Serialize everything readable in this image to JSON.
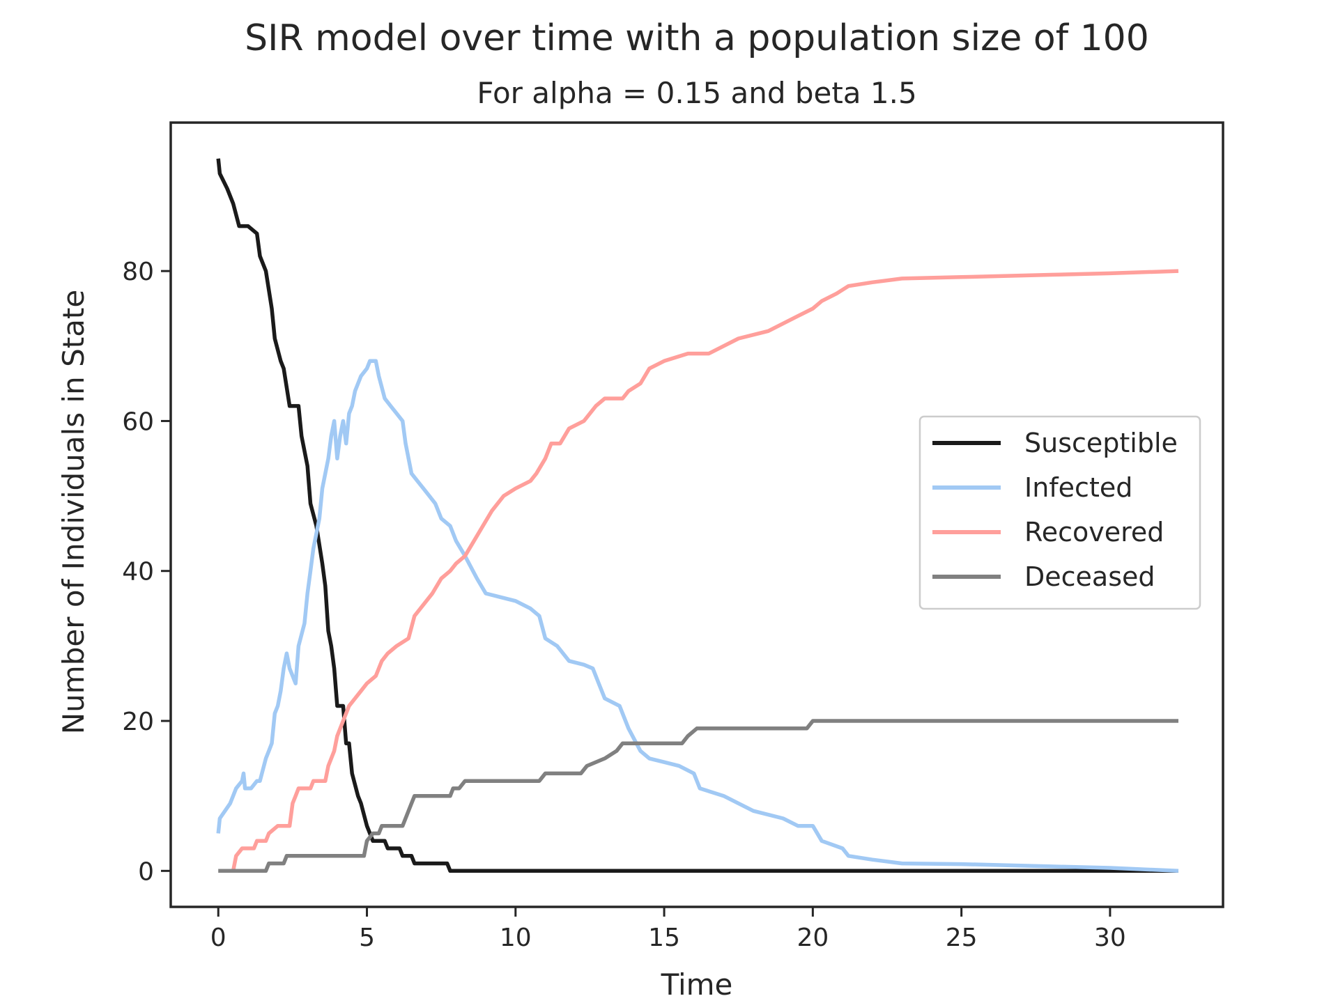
{
  "chart_data": {
    "type": "line",
    "title": "SIR model over time with a population size of 100",
    "subtitle": "For alpha = 0.15 and beta 1.5",
    "xlabel": "Time",
    "ylabel": "Number of Individuals in State",
    "xlim": [
      -1.6,
      33.8
    ],
    "ylim": [
      -4.8,
      99.8
    ],
    "xticks": [
      0,
      5,
      10,
      15,
      20,
      25,
      30
    ],
    "yticks": [
      0,
      20,
      40,
      60,
      80
    ],
    "grid": false,
    "legend_position": "center-right",
    "series": [
      {
        "name": "Susceptible",
        "color": "#1a1a1a",
        "points": [
          [
            0,
            95
          ],
          [
            0.05,
            93
          ],
          [
            0.3,
            91
          ],
          [
            0.5,
            89
          ],
          [
            0.7,
            86
          ],
          [
            1.0,
            86
          ],
          [
            1.3,
            85
          ],
          [
            1.4,
            82
          ],
          [
            1.6,
            80
          ],
          [
            1.8,
            75
          ],
          [
            1.9,
            71
          ],
          [
            2.1,
            68
          ],
          [
            2.2,
            67
          ],
          [
            2.4,
            62
          ],
          [
            2.7,
            62
          ],
          [
            2.8,
            58
          ],
          [
            3.0,
            54
          ],
          [
            3.1,
            49
          ],
          [
            3.3,
            46
          ],
          [
            3.5,
            41
          ],
          [
            3.6,
            38
          ],
          [
            3.7,
            32
          ],
          [
            3.8,
            30
          ],
          [
            3.9,
            27
          ],
          [
            4.0,
            22
          ],
          [
            4.2,
            22
          ],
          [
            4.3,
            17
          ],
          [
            4.4,
            17
          ],
          [
            4.5,
            13
          ],
          [
            4.7,
            10
          ],
          [
            4.8,
            9
          ],
          [
            5.0,
            6
          ],
          [
            5.2,
            4
          ],
          [
            5.6,
            4
          ],
          [
            5.7,
            3
          ],
          [
            6.1,
            3
          ],
          [
            6.2,
            2
          ],
          [
            6.5,
            2
          ],
          [
            6.6,
            1
          ],
          [
            7.7,
            1
          ],
          [
            7.8,
            0
          ],
          [
            32.3,
            0
          ]
        ]
      },
      {
        "name": "Infected",
        "color": "#a1c9f4",
        "points": [
          [
            0,
            5
          ],
          [
            0.05,
            7
          ],
          [
            0.4,
            9
          ],
          [
            0.6,
            11
          ],
          [
            0.8,
            12
          ],
          [
            0.85,
            13
          ],
          [
            0.9,
            11
          ],
          [
            1.1,
            11
          ],
          [
            1.3,
            12
          ],
          [
            1.4,
            12
          ],
          [
            1.6,
            15
          ],
          [
            1.7,
            16
          ],
          [
            1.8,
            17
          ],
          [
            1.9,
            21
          ],
          [
            2.0,
            22
          ],
          [
            2.1,
            24
          ],
          [
            2.2,
            27
          ],
          [
            2.3,
            29
          ],
          [
            2.4,
            27
          ],
          [
            2.5,
            26
          ],
          [
            2.6,
            25
          ],
          [
            2.7,
            30
          ],
          [
            2.9,
            33
          ],
          [
            3.0,
            37
          ],
          [
            3.1,
            40
          ],
          [
            3.2,
            43
          ],
          [
            3.3,
            45
          ],
          [
            3.4,
            47
          ],
          [
            3.5,
            51
          ],
          [
            3.6,
            53
          ],
          [
            3.7,
            55
          ],
          [
            3.8,
            58
          ],
          [
            3.9,
            60
          ],
          [
            4.0,
            55
          ],
          [
            4.1,
            58
          ],
          [
            4.2,
            60
          ],
          [
            4.3,
            57
          ],
          [
            4.4,
            61
          ],
          [
            4.5,
            62
          ],
          [
            4.6,
            64
          ],
          [
            4.8,
            66
          ],
          [
            5.0,
            67
          ],
          [
            5.1,
            68
          ],
          [
            5.3,
            68
          ],
          [
            5.4,
            66
          ],
          [
            5.6,
            63
          ],
          [
            5.8,
            62
          ],
          [
            6.0,
            61
          ],
          [
            6.2,
            60
          ],
          [
            6.3,
            57
          ],
          [
            6.5,
            53
          ],
          [
            6.7,
            52
          ],
          [
            6.9,
            51
          ],
          [
            7.1,
            50
          ],
          [
            7.3,
            49
          ],
          [
            7.5,
            47
          ],
          [
            7.8,
            46
          ],
          [
            8.0,
            44
          ],
          [
            8.3,
            42
          ],
          [
            8.7,
            39
          ],
          [
            9.0,
            37
          ],
          [
            9.5,
            36.5
          ],
          [
            10.0,
            36
          ],
          [
            10.5,
            35
          ],
          [
            10.8,
            34
          ],
          [
            11.0,
            31
          ],
          [
            11.4,
            30
          ],
          [
            11.8,
            28
          ],
          [
            12.3,
            27.5
          ],
          [
            12.6,
            27
          ],
          [
            12.8,
            25
          ],
          [
            13.0,
            23
          ],
          [
            13.5,
            22
          ],
          [
            13.8,
            19
          ],
          [
            14.2,
            16
          ],
          [
            14.5,
            15
          ],
          [
            15.0,
            14.5
          ],
          [
            15.5,
            14
          ],
          [
            16.0,
            13
          ],
          [
            16.2,
            11
          ],
          [
            17.0,
            10
          ],
          [
            17.5,
            9
          ],
          [
            18.0,
            8
          ],
          [
            19.0,
            7
          ],
          [
            19.5,
            6
          ],
          [
            20.0,
            6
          ],
          [
            20.3,
            4
          ],
          [
            21.0,
            3
          ],
          [
            21.2,
            2
          ],
          [
            22.0,
            1.5
          ],
          [
            23.0,
            1
          ],
          [
            25.0,
            0.9
          ],
          [
            28.0,
            0.6
          ],
          [
            30.0,
            0.4
          ],
          [
            32.3,
            0
          ]
        ]
      },
      {
        "name": "Recovered",
        "color": "#ff9f9b",
        "points": [
          [
            0.5,
            0
          ],
          [
            0.6,
            2
          ],
          [
            0.8,
            3
          ],
          [
            1.2,
            3
          ],
          [
            1.3,
            4
          ],
          [
            1.6,
            4
          ],
          [
            1.7,
            5
          ],
          [
            2.0,
            6
          ],
          [
            2.4,
            6
          ],
          [
            2.5,
            9
          ],
          [
            2.6,
            10
          ],
          [
            2.7,
            11
          ],
          [
            3.1,
            11
          ],
          [
            3.2,
            12
          ],
          [
            3.6,
            12
          ],
          [
            3.7,
            14
          ],
          [
            3.9,
            16
          ],
          [
            4.0,
            18
          ],
          [
            4.2,
            20
          ],
          [
            4.4,
            22
          ],
          [
            4.6,
            23
          ],
          [
            4.8,
            24
          ],
          [
            5.0,
            25
          ],
          [
            5.3,
            26
          ],
          [
            5.5,
            28
          ],
          [
            5.7,
            29
          ],
          [
            6.0,
            30
          ],
          [
            6.4,
            31
          ],
          [
            6.6,
            34
          ],
          [
            6.8,
            35
          ],
          [
            7.2,
            37
          ],
          [
            7.5,
            39
          ],
          [
            7.8,
            40
          ],
          [
            8.0,
            41
          ],
          [
            8.3,
            42
          ],
          [
            8.6,
            44
          ],
          [
            8.9,
            46
          ],
          [
            9.2,
            48
          ],
          [
            9.6,
            50
          ],
          [
            10.0,
            51
          ],
          [
            10.5,
            52
          ],
          [
            10.7,
            53
          ],
          [
            11.0,
            55
          ],
          [
            11.2,
            57
          ],
          [
            11.5,
            57
          ],
          [
            11.8,
            59
          ],
          [
            12.3,
            60
          ],
          [
            12.7,
            62
          ],
          [
            13.0,
            63
          ],
          [
            13.6,
            63
          ],
          [
            13.8,
            64
          ],
          [
            14.2,
            65
          ],
          [
            14.5,
            67
          ],
          [
            15.0,
            68
          ],
          [
            15.8,
            69
          ],
          [
            16.5,
            69
          ],
          [
            17.0,
            70
          ],
          [
            17.5,
            71
          ],
          [
            18.5,
            72
          ],
          [
            19.5,
            74
          ],
          [
            20.0,
            75
          ],
          [
            20.3,
            76
          ],
          [
            20.8,
            77
          ],
          [
            21.2,
            78
          ],
          [
            22.0,
            78.5
          ],
          [
            23.0,
            79
          ],
          [
            25.0,
            79.2
          ],
          [
            28.0,
            79.5
          ],
          [
            30.0,
            79.7
          ],
          [
            32.3,
            80
          ]
        ]
      },
      {
        "name": "Deceased",
        "color": "#808080",
        "points": [
          [
            0,
            0
          ],
          [
            1.6,
            0
          ],
          [
            1.7,
            1
          ],
          [
            2.2,
            1
          ],
          [
            2.3,
            2
          ],
          [
            4.9,
            2
          ],
          [
            5.0,
            4
          ],
          [
            5.2,
            5
          ],
          [
            5.4,
            5
          ],
          [
            5.5,
            6
          ],
          [
            6.2,
            6
          ],
          [
            6.4,
            8
          ],
          [
            6.5,
            9
          ],
          [
            6.6,
            10
          ],
          [
            7.8,
            10
          ],
          [
            7.9,
            11
          ],
          [
            8.1,
            11
          ],
          [
            8.3,
            12
          ],
          [
            10.8,
            12
          ],
          [
            11.0,
            13
          ],
          [
            12.2,
            13
          ],
          [
            12.4,
            14
          ],
          [
            13.0,
            15
          ],
          [
            13.4,
            16
          ],
          [
            13.6,
            17
          ],
          [
            14.2,
            17
          ],
          [
            15.6,
            17
          ],
          [
            15.8,
            18
          ],
          [
            16.1,
            19
          ],
          [
            16.5,
            19
          ],
          [
            19.8,
            19
          ],
          [
            20.0,
            20
          ],
          [
            32.3,
            20
          ]
        ]
      }
    ]
  }
}
